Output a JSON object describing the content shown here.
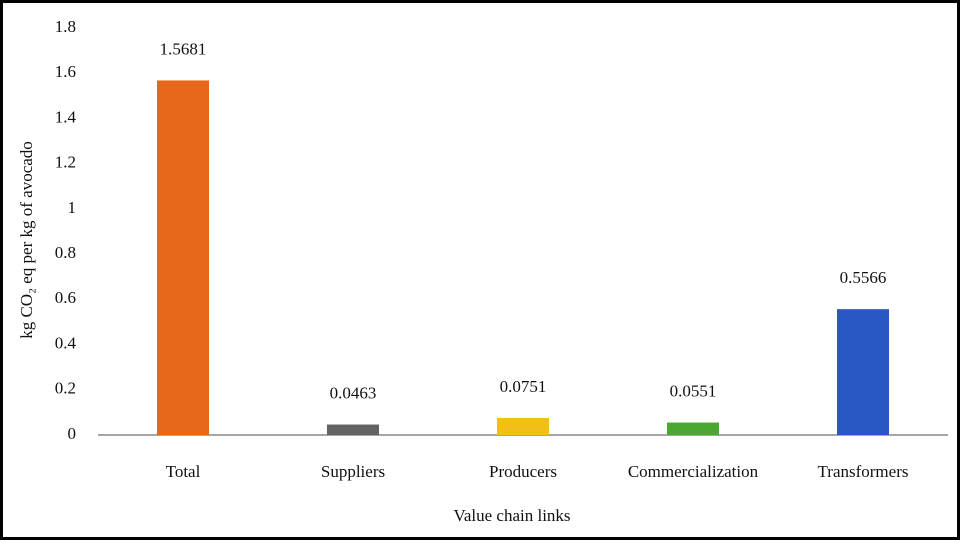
{
  "chart_data": {
    "type": "bar",
    "categories": [
      "Total",
      "Suppliers",
      "Producers",
      "Commercialization",
      "Transformers"
    ],
    "values": [
      1.5681,
      0.0463,
      0.0751,
      0.0551,
      0.5566
    ],
    "colors": [
      "#e8681a",
      "#636363",
      "#f2c014",
      "#4aa832",
      "#2a57c4"
    ],
    "xlabel": "Value chain links",
    "ylabel": "kg CO₂ eq per kg of avocado",
    "ylim": [
      0,
      1.8
    ],
    "yticks": [
      0,
      0.2,
      0.4,
      0.6,
      0.8,
      1,
      1.2,
      1.4,
      1.6,
      1.8
    ],
    "grid": false
  }
}
